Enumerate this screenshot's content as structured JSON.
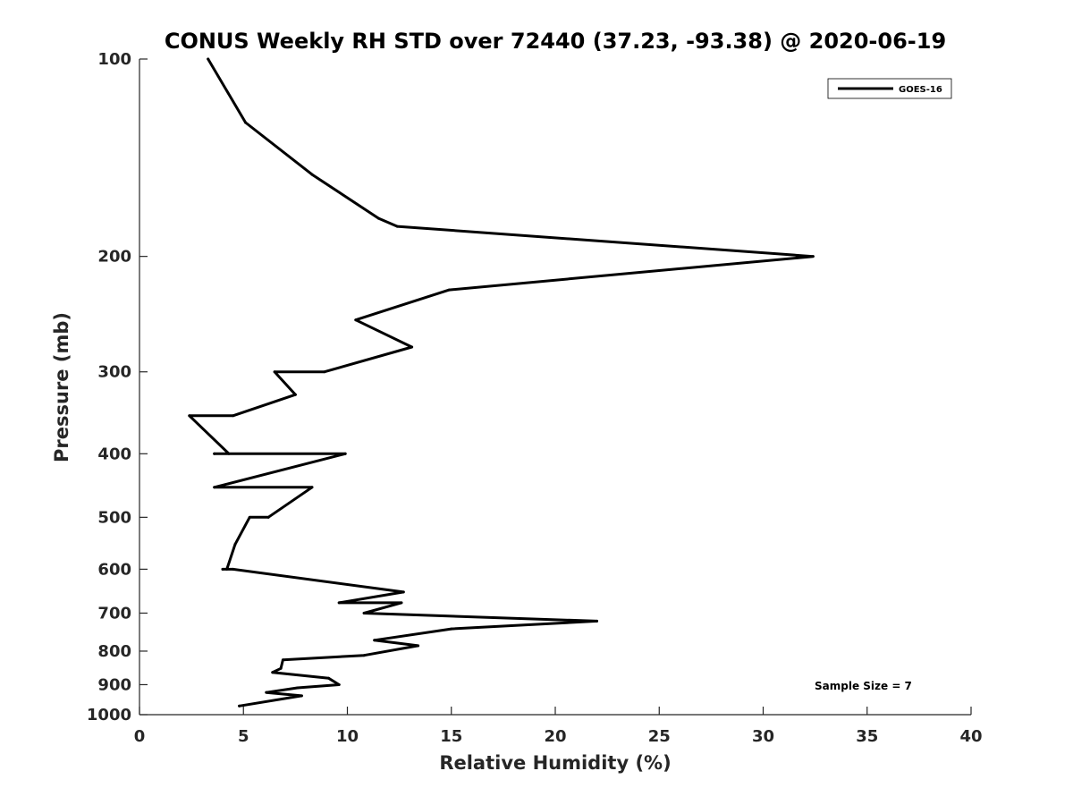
{
  "chart_data": {
    "type": "line",
    "title": "CONUS Weekly RH STD over 72440 (37.23, -93.38) @ 2020-06-19",
    "xlabel": "Relative Humidity (%)",
    "ylabel": "Pressure (mb)",
    "xlim": [
      0,
      40
    ],
    "ylim": [
      100,
      1000
    ],
    "y_scale": "log",
    "y_reversed": true,
    "grid": false,
    "legend_position": "top-right",
    "x_ticks": [
      0,
      5,
      10,
      15,
      20,
      25,
      30,
      35,
      40
    ],
    "x_tick_labels": [
      "0",
      "5",
      "10",
      "15",
      "20",
      "25",
      "30",
      "35",
      "40"
    ],
    "y_ticks": [
      100,
      200,
      300,
      400,
      500,
      600,
      700,
      800,
      900,
      1000
    ],
    "y_tick_labels": [
      "100",
      "200",
      "300",
      "400",
      "500",
      "600",
      "700",
      "800",
      "900",
      "1000"
    ],
    "series": [
      {
        "name": "GOES-16",
        "color": "#000000",
        "points": [
          [
            3.3,
            100
          ],
          [
            5.1,
            125
          ],
          [
            8.3,
            150
          ],
          [
            11.5,
            175
          ],
          [
            12.4,
            180
          ],
          [
            32.4,
            200
          ],
          [
            14.9,
            225
          ],
          [
            10.4,
            250
          ],
          [
            13.1,
            275
          ],
          [
            8.9,
            300
          ],
          [
            6.5,
            300
          ],
          [
            7.5,
            325
          ],
          [
            4.5,
            350
          ],
          [
            2.4,
            350
          ],
          [
            4.3,
            400
          ],
          [
            3.6,
            400
          ],
          [
            9.9,
            400
          ],
          [
            3.6,
            450
          ],
          [
            8.3,
            450
          ],
          [
            6.2,
            500
          ],
          [
            5.3,
            500
          ],
          [
            4.6,
            550
          ],
          [
            4.2,
            600
          ],
          [
            4.0,
            600
          ],
          [
            4.5,
            600
          ],
          [
            12.7,
            650
          ],
          [
            9.6,
            675
          ],
          [
            12.6,
            675
          ],
          [
            10.8,
            700
          ],
          [
            22.0,
            720
          ],
          [
            15.0,
            740
          ],
          [
            11.3,
            770
          ],
          [
            13.4,
            785
          ],
          [
            10.8,
            812
          ],
          [
            6.9,
            825
          ],
          [
            6.8,
            850
          ],
          [
            6.4,
            862
          ],
          [
            9.1,
            880
          ],
          [
            9.6,
            900
          ],
          [
            7.6,
            910
          ],
          [
            6.1,
            925
          ],
          [
            7.8,
            936
          ],
          [
            4.8,
            970
          ]
        ]
      }
    ],
    "annotations": [
      "Sample Size = 7"
    ]
  }
}
